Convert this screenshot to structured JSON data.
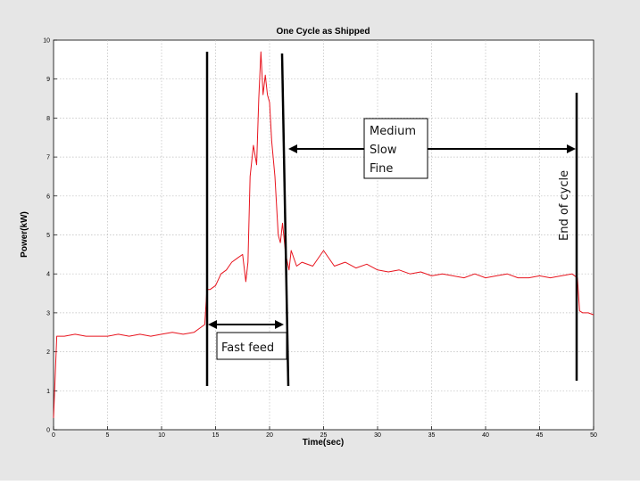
{
  "chart_data": {
    "type": "line",
    "title": "One Cycle as Shipped",
    "xlabel": "Time(sec)",
    "ylabel": "Power(kW)",
    "xlim": [
      0,
      50
    ],
    "ylim": [
      0,
      10
    ],
    "xticks": [
      "0",
      "5",
      "10",
      "15",
      "20",
      "25",
      "30",
      "35",
      "40",
      "45",
      "50"
    ],
    "yticks": [
      "0",
      "1",
      "2",
      "3",
      "4",
      "5",
      "6",
      "7",
      "8",
      "9",
      "10"
    ],
    "grid": true,
    "series": [
      {
        "color": "#e8141e",
        "x": [
          0,
          0.3,
          1,
          2,
          3,
          4,
          5,
          6,
          7,
          8,
          9,
          10,
          11,
          12,
          13,
          13.5,
          14,
          14.2,
          14.5,
          15,
          15.5,
          16,
          16.5,
          17,
          17.5,
          17.8,
          18,
          18.2,
          18.5,
          18.8,
          19,
          19.2,
          19.4,
          19.6,
          19.8,
          20,
          20.2,
          20.5,
          20.8,
          21,
          21.2,
          21.5,
          21.8,
          22,
          22.5,
          23,
          24,
          25,
          26,
          27,
          28,
          29,
          30,
          31,
          32,
          33,
          34,
          35,
          36,
          37,
          38,
          39,
          40,
          41,
          42,
          43,
          44,
          45,
          46,
          47,
          48,
          48.5,
          48.7,
          49,
          49.5,
          50
        ],
        "y": [
          0.3,
          2.4,
          2.4,
          2.45,
          2.4,
          2.4,
          2.4,
          2.45,
          2.4,
          2.45,
          2.4,
          2.45,
          2.5,
          2.45,
          2.5,
          2.6,
          2.7,
          3.6,
          3.6,
          3.7,
          4.0,
          4.1,
          4.3,
          4.4,
          4.5,
          3.8,
          4.3,
          6.5,
          7.3,
          6.8,
          8.5,
          9.7,
          8.6,
          9.1,
          8.6,
          8.4,
          7.4,
          6.5,
          5.0,
          4.8,
          5.3,
          4.5,
          4.1,
          4.6,
          4.2,
          4.3,
          4.2,
          4.6,
          4.2,
          4.3,
          4.15,
          4.25,
          4.1,
          4.05,
          4.1,
          4.0,
          4.05,
          3.95,
          4.0,
          3.95,
          3.9,
          4.0,
          3.9,
          3.95,
          4.0,
          3.9,
          3.9,
          3.95,
          3.9,
          3.95,
          4.0,
          3.9,
          3.05,
          3.0,
          3.0,
          2.95
        ]
      }
    ],
    "annotations": {
      "fast_feed": "Fast feed",
      "medium_lines": [
        "Medium",
        "Slow",
        "Fine"
      ],
      "end_of_cycle": "End of cycle"
    }
  }
}
